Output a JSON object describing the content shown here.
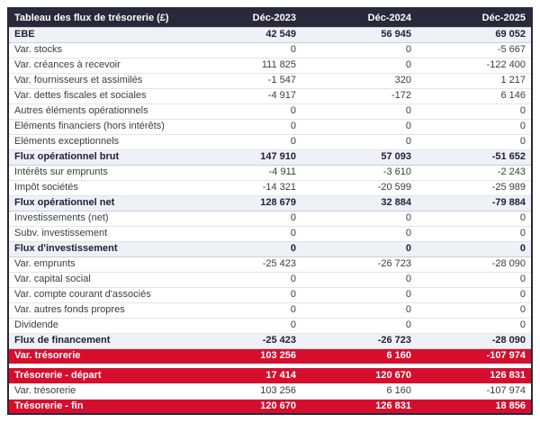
{
  "colors": {
    "header_bg": "#29293a",
    "header_text": "#ffffff",
    "total_row_bg": "#eef1f6",
    "red_row_bg": "#d60e2e",
    "red_row_text": "#ffffff"
  },
  "table": {
    "title": "Tableau des flux de trésorerie (£)",
    "columns": [
      "Déc-2023",
      "Déc-2024",
      "Déc-2025"
    ],
    "rows": [
      {
        "label": "EBE",
        "values": [
          "42 549",
          "56 945",
          "69 052"
        ],
        "style": "total"
      },
      {
        "label": "Var. stocks",
        "values": [
          "0",
          "0",
          "-5 667"
        ],
        "style": "normal"
      },
      {
        "label": "Var. créances à recevoir",
        "values": [
          "111 825",
          "0",
          "-122 400"
        ],
        "style": "normal"
      },
      {
        "label": "Var. fournisseurs et assimilés",
        "values": [
          "-1 547",
          "320",
          "1 217"
        ],
        "style": "normal"
      },
      {
        "label": "Var. dettes fiscales et sociales",
        "values": [
          "-4 917",
          "-172",
          "6 146"
        ],
        "style": "normal"
      },
      {
        "label": "Autres éléments opérationnels",
        "values": [
          "0",
          "0",
          "0"
        ],
        "style": "normal"
      },
      {
        "label": "Eléments financiers (hors intérêts)",
        "values": [
          "0",
          "0",
          "0"
        ],
        "style": "normal"
      },
      {
        "label": "Eléments exceptionnels",
        "values": [
          "0",
          "0",
          "0"
        ],
        "style": "normal"
      },
      {
        "label": "Flux opérationnel brut",
        "values": [
          "147 910",
          "57 093",
          "-51 652"
        ],
        "style": "total"
      },
      {
        "label": "Intérêts sur emprunts",
        "values": [
          "-4 911",
          "-3 610",
          "-2 243"
        ],
        "style": "normal"
      },
      {
        "label": "Impôt sociétés",
        "values": [
          "-14 321",
          "-20 599",
          "-25 989"
        ],
        "style": "normal"
      },
      {
        "label": "Flux opérationnel net",
        "values": [
          "128 679",
          "32 884",
          "-79 884"
        ],
        "style": "total"
      },
      {
        "label": "Investissements (net)",
        "values": [
          "0",
          "0",
          "0"
        ],
        "style": "normal"
      },
      {
        "label": "Subv. investissement",
        "values": [
          "0",
          "0",
          "0"
        ],
        "style": "normal"
      },
      {
        "label": "Flux d'investissement",
        "values": [
          "0",
          "0",
          "0"
        ],
        "style": "total"
      },
      {
        "label": "Var. emprunts",
        "values": [
          "-25 423",
          "-26 723",
          "-28 090"
        ],
        "style": "normal"
      },
      {
        "label": "Var. capital social",
        "values": [
          "0",
          "0",
          "0"
        ],
        "style": "normal"
      },
      {
        "label": "Var. compte courant d'associés",
        "values": [
          "0",
          "0",
          "0"
        ],
        "style": "normal"
      },
      {
        "label": "Var. autres fonds propres",
        "values": [
          "0",
          "0",
          "0"
        ],
        "style": "normal"
      },
      {
        "label": "Dividende",
        "values": [
          "0",
          "0",
          "0"
        ],
        "style": "normal"
      },
      {
        "label": "Flux de financement",
        "values": [
          "-25 423",
          "-26 723",
          "-28 090"
        ],
        "style": "total"
      },
      {
        "label": "Var. trésorerie",
        "values": [
          "103 256",
          "6 160",
          "-107 974"
        ],
        "style": "red"
      },
      {
        "label": "Trésorerie - départ",
        "values": [
          "17 414",
          "120 670",
          "126 831"
        ],
        "style": "red",
        "gap_before": true
      },
      {
        "label": "Var. trésorerie",
        "values": [
          "103 256",
          "6 160",
          "-107 974"
        ],
        "style": "normal"
      },
      {
        "label": "Trésorerie - fin",
        "values": [
          "120 670",
          "126 831",
          "18 856"
        ],
        "style": "red"
      }
    ]
  }
}
